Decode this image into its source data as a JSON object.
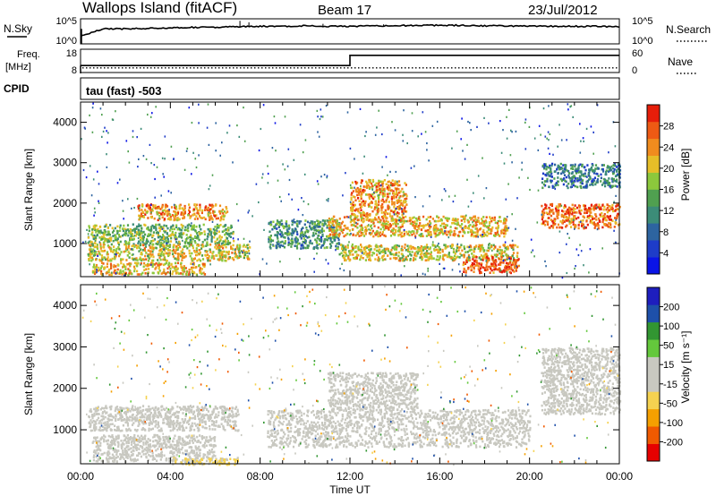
{
  "header": {
    "station": "Wallops Island (fitACF)",
    "beam": "Beam 17",
    "date": "23/Jul/2012"
  },
  "strips": {
    "nsky_label": "N.Sky",
    "nsearch_label": "N.Search",
    "noise_tick_top": "10^5",
    "noise_tick_bottom": "10^0",
    "freq_label_line1": "Freq.",
    "freq_label_line2": "[MHz]",
    "freq_tick_top": "18",
    "freq_tick_bottom": "8",
    "nave_label": "Nave",
    "nave_tick_top": "60",
    "nave_tick_bottom": "0",
    "cpid_label": "CPID",
    "cpid_value": "tau (fast) -503"
  },
  "colors": {
    "power_scale": [
      "#0a14e6",
      "#1e3cc8",
      "#2d64a0",
      "#3c8c78",
      "#50a050",
      "#8cc83c",
      "#e6be28",
      "#f08c1e",
      "#ee5a14",
      "#e61e0a"
    ],
    "velocity_scale": [
      "#e60000",
      "#f05a00",
      "#f5a000",
      "#f5d250",
      "#c8c8c0",
      "#c8c8c0",
      "#64c83c",
      "#329632",
      "#1e50aa",
      "#1e1ebe"
    ],
    "trace": "#000000",
    "axes": "#000000"
  },
  "chart_data": [
    {
      "type": "line",
      "title": "N.Sky / N.Search",
      "x": [
        "00:00",
        "01:00",
        "02:00",
        "03:00",
        "04:00",
        "05:00",
        "06:00",
        "07:00",
        "08:00",
        "09:00",
        "10:00",
        "11:00",
        "12:00",
        "13:00",
        "14:00",
        "15:00",
        "16:00",
        "17:00",
        "18:00",
        "19:00",
        "20:00",
        "21:00",
        "22:00",
        "23:00",
        "00:00"
      ],
      "series": [
        {
          "name": "N.Sky",
          "values": [
            1.5,
            3.0,
            3.0,
            3.1,
            3.2,
            3.3,
            3.3,
            3.4,
            3.5,
            3.5,
            3.6,
            3.5,
            3.5,
            3.6,
            3.6,
            3.7,
            3.7,
            3.7,
            3.6,
            3.6,
            3.5,
            3.5,
            3.5,
            3.5,
            3.4
          ]
        }
      ],
      "ylim": [
        0,
        5
      ],
      "yscale": "log"
    },
    {
      "type": "line",
      "title": "Freq. [MHz] / Nave",
      "x": [
        "00:00",
        "01:00",
        "02:00",
        "03:00",
        "04:00",
        "05:00",
        "06:00",
        "07:00",
        "08:00",
        "09:00",
        "10:00",
        "11:00",
        "12:00",
        "13:00",
        "14:00",
        "15:00",
        "16:00",
        "17:00",
        "18:00",
        "19:00",
        "20:00",
        "21:00",
        "22:00",
        "23:00",
        "00:00"
      ],
      "series": [
        {
          "name": "Freq.",
          "values": [
            11.0,
            11.0,
            11.0,
            11.0,
            11.0,
            11.0,
            11.0,
            11.0,
            11.0,
            11.0,
            11.0,
            11.0,
            15.4,
            15.4,
            15.4,
            15.4,
            15.4,
            15.4,
            15.4,
            15.4,
            15.4,
            15.4,
            15.4,
            15.4,
            15.4
          ]
        },
        {
          "name": "Nave",
          "values": [
            12,
            12,
            12,
            12,
            12,
            12,
            12,
            12,
            12,
            12,
            12,
            12,
            12,
            12,
            12,
            12,
            12,
            12,
            12,
            12,
            12,
            12,
            12,
            12,
            12
          ]
        }
      ],
      "ylim": [
        8,
        18
      ]
    },
    {
      "type": "heatmap",
      "title": "Power",
      "xlabel": "",
      "ylabel": "Slant Range [km]",
      "x_ticks": [
        "00:00",
        "04:00",
        "08:00",
        "12:00",
        "16:00",
        "20:00",
        "00:00"
      ],
      "y_ticks": [
        1000,
        2000,
        3000,
        4000
      ],
      "xlim": [
        0,
        24
      ],
      "ylim": [
        180,
        4500
      ],
      "colorbar": {
        "label": "Power [dB]",
        "ticks": [
          4,
          8,
          12,
          16,
          20,
          24,
          28
        ],
        "range": [
          0,
          32
        ]
      },
      "regions": [
        {
          "t": [
            0.3,
            6.8
          ],
          "r": [
            1000,
            1500
          ],
          "level": 16
        },
        {
          "t": [
            0.3,
            7.5
          ],
          "r": [
            600,
            1000
          ],
          "level": 20
        },
        {
          "t": [
            0.5,
            5.5
          ],
          "r": [
            250,
            550
          ],
          "level": 22
        },
        {
          "t": [
            2.5,
            6.5
          ],
          "r": [
            1600,
            2000
          ],
          "level": 24
        },
        {
          "t": [
            8.3,
            11.5
          ],
          "r": [
            900,
            1600
          ],
          "level": 12
        },
        {
          "t": [
            11.5,
            19.5
          ],
          "r": [
            600,
            1000
          ],
          "level": 20
        },
        {
          "t": [
            17.0,
            19.5
          ],
          "r": [
            300,
            700
          ],
          "level": 28
        },
        {
          "t": [
            11.0,
            19.0
          ],
          "r": [
            1200,
            1700
          ],
          "level": 22
        },
        {
          "t": [
            12.0,
            14.5
          ],
          "r": [
            1700,
            2600
          ],
          "level": 24
        },
        {
          "t": [
            20.5,
            24.0
          ],
          "r": [
            1400,
            2000
          ],
          "level": 26
        },
        {
          "t": [
            20.5,
            24.0
          ],
          "r": [
            2400,
            3000
          ],
          "level": 10
        }
      ]
    },
    {
      "type": "heatmap",
      "title": "Velocity",
      "xlabel": "Time UT",
      "ylabel": "Slant Range [km]",
      "x_ticks": [
        "00:00",
        "04:00",
        "08:00",
        "12:00",
        "16:00",
        "20:00",
        "00:00"
      ],
      "y_ticks": [
        1000,
        2000,
        3000,
        4000
      ],
      "xlim": [
        0,
        24
      ],
      "ylim": [
        180,
        4500
      ],
      "colorbar": {
        "label": "Velocity [m s^-1]",
        "ticks": [
          200,
          100,
          50,
          15,
          -15,
          -50,
          -100,
          -200
        ],
        "range": [
          -250,
          250
        ]
      },
      "regions": [
        {
          "t": [
            0.3,
            7.0
          ],
          "r": [
            1000,
            1600
          ],
          "level": 0
        },
        {
          "t": [
            0.5,
            6.0
          ],
          "r": [
            250,
            900
          ],
          "level": 30
        },
        {
          "t": [
            4.0,
            7.0
          ],
          "r": [
            180,
            350
          ],
          "level": -60
        },
        {
          "t": [
            8.3,
            20.0
          ],
          "r": [
            600,
            1500
          ],
          "level": 0
        },
        {
          "t": [
            11.0,
            15.0
          ],
          "r": [
            1500,
            2400
          ],
          "level": 0
        },
        {
          "t": [
            20.5,
            24.0
          ],
          "r": [
            1400,
            3000
          ],
          "level": 0
        }
      ]
    }
  ],
  "axes": {
    "power_ylabel": "Slant Range [km]",
    "velocity_ylabel": "Slant Range [km]",
    "power_cbar_label": "Power [dB]",
    "velocity_cbar_label": "Velocity [m s⁻¹]",
    "xlabel": "Time UT",
    "x_ticks": [
      "00:00",
      "04:00",
      "08:00",
      "12:00",
      "16:00",
      "20:00",
      "00:00"
    ],
    "y_ticks": [
      "1000",
      "2000",
      "3000",
      "4000"
    ],
    "power_ticks": [
      "4",
      "8",
      "12",
      "16",
      "20",
      "24",
      "28"
    ],
    "velocity_ticks": [
      "200",
      "100",
      "50",
      "15",
      "-15",
      "-50",
      "-100",
      "-200"
    ]
  }
}
